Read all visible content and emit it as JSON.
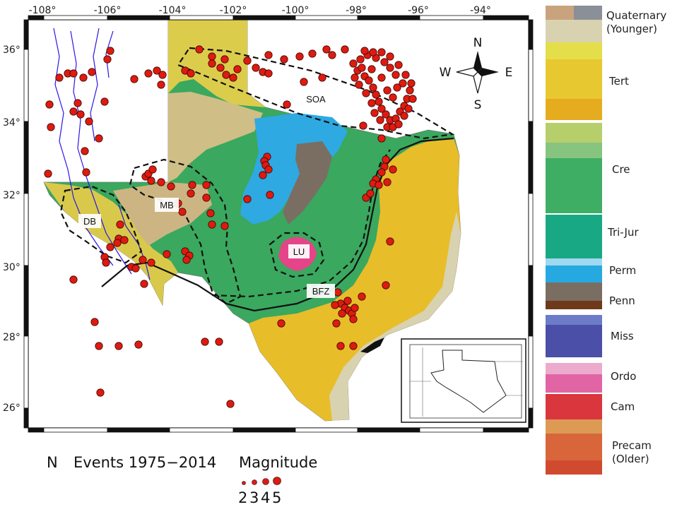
{
  "map": {
    "lon_ticks": [
      "-108°",
      "-106°",
      "-104°",
      "-102°",
      "-100°",
      "-98°",
      "-96°",
      "-94°"
    ],
    "lat_ticks": [
      "36°",
      "34°",
      "32°",
      "30°",
      "28°",
      "26°"
    ],
    "region_labels": [
      "SOA",
      "MB",
      "DB",
      "LU",
      "BFZ"
    ],
    "compass": {
      "n": "N",
      "s": "S",
      "e": "E",
      "w": "W"
    }
  },
  "caption": {
    "n": "N",
    "events": "Events 1975−2014",
    "magnitude": "Magnitude",
    "scale": [
      "2",
      "3",
      "4",
      "5"
    ]
  },
  "legend": {
    "units": [
      {
        "label": "Quaternary\n(Younger)",
        "color": "#d8d2b0"
      },
      {
        "label": "Tert",
        "color": "#e8c830"
      },
      {
        "label": "Cre",
        "color": "#3fae65"
      },
      {
        "label": "Tri-Jur",
        "color": "#19a884"
      },
      {
        "label": "Perm",
        "color": "#26a9e0"
      },
      {
        "label": "Penn",
        "color": "#7a6e62"
      },
      {
        "label": "Miss",
        "color": "#4b4fa8"
      },
      {
        "label": "Ordo",
        "color": "#e165a4"
      },
      {
        "label": "Cam",
        "color": "#d9363e"
      },
      {
        "label": "Precam\n(Older)",
        "color": "#d8663a"
      }
    ]
  },
  "colors": {
    "event": "#e01a10",
    "faults": "#2c16e6",
    "boundary": "#111111"
  }
}
